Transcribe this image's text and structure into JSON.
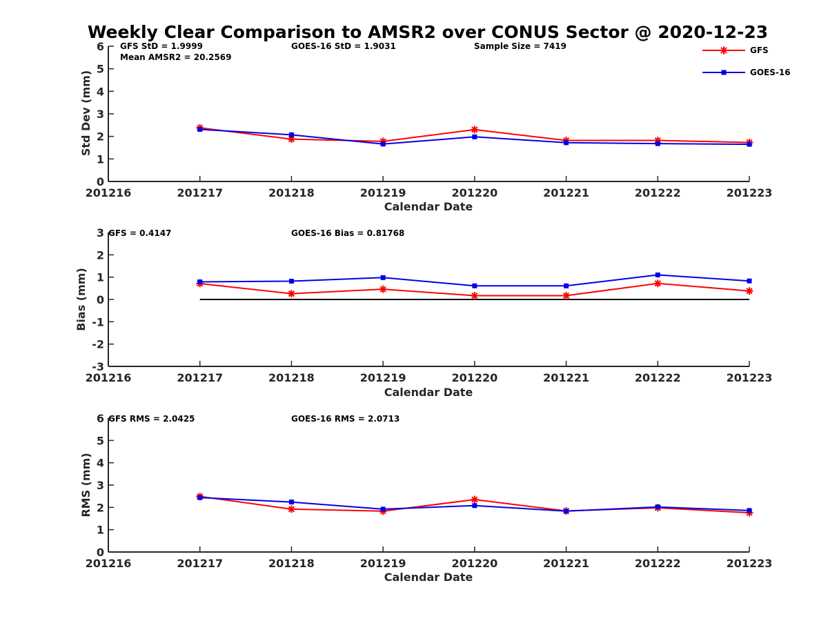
{
  "title": "Weekly Clear Comparison to AMSR2 over CONUS Sector @ 2020-12-23",
  "legend": {
    "placement": "top-right",
    "entries": [
      {
        "label": "GFS",
        "color": "#ff0000",
        "marker": "star"
      },
      {
        "label": "GOES-16",
        "color": "#0000e6",
        "marker": "square"
      }
    ]
  },
  "panels": [
    {
      "stats": [
        "GFS StD = 1.9999",
        "GOES-16 StD = 1.9031",
        "Sample Size = 7419",
        "Mean AMSR2 = 20.2569"
      ],
      "xlabel": "Calendar Date",
      "ylabel": "Std Dev (mm)"
    },
    {
      "stats": [
        "GFS = 0.4147",
        "GOES-16 Bias  = 0.81768"
      ],
      "xlabel": "Calendar Date",
      "ylabel": "Bias (mm)"
    },
    {
      "stats": [
        "GFS RMS = 2.0425",
        "GOES-16 RMS = 2.0713"
      ],
      "xlabel": "Calendar Date",
      "ylabel": "RMS (mm)"
    }
  ],
  "chart_data": [
    {
      "type": "line",
      "categories": [
        "201216",
        "201217",
        "201218",
        "201219",
        "201220",
        "201221",
        "201222",
        "201223"
      ],
      "xlabel": "Calendar Date",
      "ylabel": "Std Dev (mm)",
      "ylim": [
        0,
        6
      ],
      "yticks": [
        "0",
        "1",
        "2",
        "3",
        "4",
        "5",
        "6"
      ],
      "grid": false,
      "series": [
        {
          "name": "GFS",
          "color": "#ff0000",
          "marker": "star",
          "x": [
            "201217",
            "201218",
            "201219",
            "201220",
            "201221",
            "201222",
            "201223"
          ],
          "values": [
            2.38,
            1.88,
            1.78,
            2.3,
            1.82,
            1.82,
            1.73
          ]
        },
        {
          "name": "GOES-16",
          "color": "#0000e6",
          "marker": "square",
          "x": [
            "201217",
            "201218",
            "201219",
            "201220",
            "201221",
            "201222",
            "201223"
          ],
          "values": [
            2.31,
            2.07,
            1.66,
            1.98,
            1.72,
            1.68,
            1.65
          ]
        }
      ]
    },
    {
      "type": "line",
      "categories": [
        "201216",
        "201217",
        "201218",
        "201219",
        "201220",
        "201221",
        "201222",
        "201223"
      ],
      "xlabel": "Calendar Date",
      "ylabel": "Bias (mm)",
      "ylim": [
        -3,
        3
      ],
      "yticks": [
        "-3",
        "-2",
        "-1",
        "0",
        "1",
        "2",
        "3"
      ],
      "grid": false,
      "reference_line": {
        "y": 0,
        "from": "201217",
        "to": "201223",
        "color": "#000000"
      },
      "series": [
        {
          "name": "GFS",
          "color": "#ff0000",
          "marker": "star",
          "x": [
            "201217",
            "201218",
            "201219",
            "201220",
            "201221",
            "201222",
            "201223"
          ],
          "values": [
            0.71,
            0.26,
            0.46,
            0.17,
            0.17,
            0.72,
            0.38
          ]
        },
        {
          "name": "GOES-16",
          "color": "#0000e6",
          "marker": "square",
          "x": [
            "201217",
            "201218",
            "201219",
            "201220",
            "201221",
            "201222",
            "201223"
          ],
          "values": [
            0.79,
            0.82,
            0.98,
            0.61,
            0.61,
            1.1,
            0.83
          ]
        }
      ]
    },
    {
      "type": "line",
      "categories": [
        "201216",
        "201217",
        "201218",
        "201219",
        "201220",
        "201221",
        "201222",
        "201223"
      ],
      "xlabel": "Calendar Date",
      "ylabel": "RMS (mm)",
      "ylim": [
        0,
        6
      ],
      "yticks": [
        "0",
        "1",
        "2",
        "3",
        "4",
        "5",
        "6"
      ],
      "grid": false,
      "series": [
        {
          "name": "GFS",
          "color": "#ff0000",
          "marker": "star",
          "x": [
            "201217",
            "201218",
            "201219",
            "201220",
            "201221",
            "201222",
            "201223"
          ],
          "values": [
            2.49,
            1.92,
            1.83,
            2.35,
            1.84,
            1.98,
            1.76
          ]
        },
        {
          "name": "GOES-16",
          "color": "#0000e6",
          "marker": "square",
          "x": [
            "201217",
            "201218",
            "201219",
            "201220",
            "201221",
            "201222",
            "201223"
          ],
          "values": [
            2.44,
            2.24,
            1.92,
            2.08,
            1.83,
            2.02,
            1.86
          ]
        }
      ]
    }
  ]
}
